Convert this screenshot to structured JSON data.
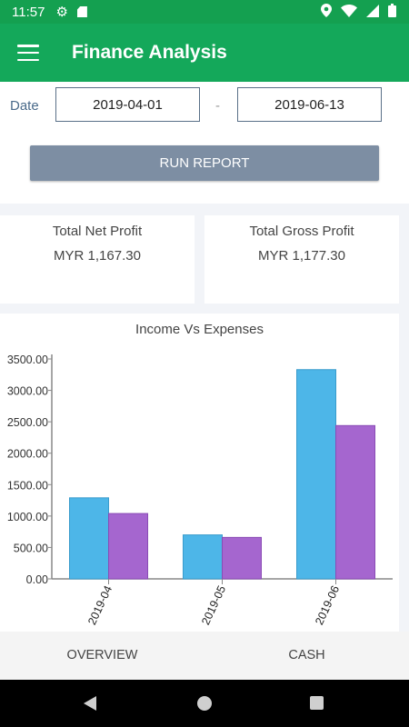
{
  "status": {
    "time": "11:57"
  },
  "app": {
    "title": "Finance Analysis"
  },
  "filter": {
    "date_label": "Date",
    "from": "2019-04-01",
    "separator": "-",
    "to": "2019-06-13",
    "run_label": "RUN REPORT"
  },
  "summary": {
    "net": {
      "label": "Total Net Profit",
      "value": "MYR 1,167.30"
    },
    "gross": {
      "label": "Total Gross Profit",
      "value": "MYR 1,177.30"
    }
  },
  "colors": {
    "primary": "#14a85a",
    "income": "#4db6e8",
    "expense": "#a566cf",
    "button": "#7d8ea3"
  },
  "chart_data": {
    "type": "bar",
    "title": "Income Vs Expenses",
    "categories": [
      "2019-04",
      "2019-05",
      "2019-06"
    ],
    "series": [
      {
        "values": [
          1290,
          700,
          3330
        ]
      },
      {
        "values": [
          1040,
          660,
          2440
        ]
      }
    ],
    "ylim": [
      0,
      3500
    ],
    "yticks": [
      "0.00",
      "500.00",
      "1000.00",
      "1500.00",
      "2000.00",
      "2500.00",
      "3000.00",
      "3500.00"
    ],
    "grid": false,
    "legend": "none"
  },
  "nav": {
    "overview": "OVERVIEW",
    "cash": "CASH"
  }
}
